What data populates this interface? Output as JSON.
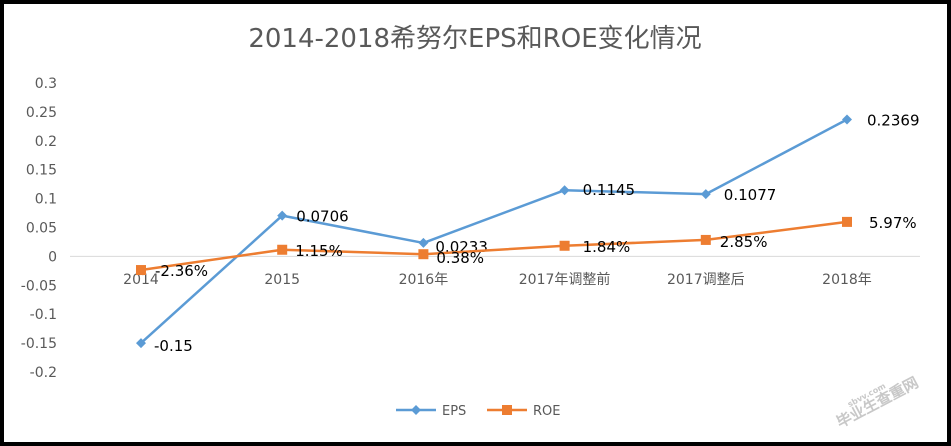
{
  "chart_data": {
    "type": "line",
    "title": "2014-2018希努尔EPS和ROE变化情况",
    "categories": [
      "2014",
      "2015",
      "2016年",
      "2017年调整前",
      "2017调整后",
      "2018年"
    ],
    "ylim": [
      -0.2,
      0.3
    ],
    "yticks": [
      "0.3",
      "0.25",
      "0.2",
      "0.15",
      "0.1",
      "0.05",
      "0",
      "-0.05",
      "-0.1",
      "-0.15",
      "-0.2"
    ],
    "grid": false,
    "legend_position": "bottom",
    "series": [
      {
        "name": "EPS",
        "color": "#5b9bd5",
        "marker": "diamond",
        "values": [
          -0.15,
          0.0706,
          0.0233,
          0.1145,
          0.1077,
          0.2369
        ],
        "labels": [
          "-0.15",
          "0.0706",
          "0.0233",
          "0.1145",
          "0.1077",
          "0.2369"
        ]
      },
      {
        "name": "ROE",
        "color": "#ed7d31",
        "marker": "square",
        "values": [
          -0.0236,
          0.0115,
          0.0038,
          0.0184,
          0.0285,
          0.0597
        ],
        "labels": [
          "-2.36%",
          "1.15%",
          "0.38%",
          "1.84%",
          "2.85%",
          "5.97%"
        ]
      }
    ]
  },
  "watermark": "毕业生查重网",
  "watermark_sub": "sbvv.com"
}
